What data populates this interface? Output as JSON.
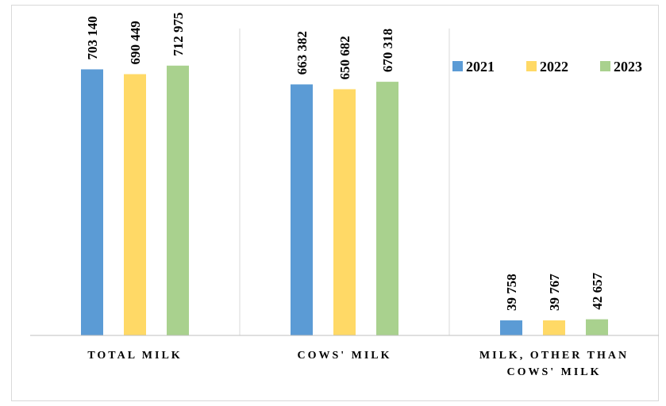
{
  "chart_data": {
    "type": "bar",
    "title": "",
    "xlabel": "",
    "ylabel": "",
    "categories": [
      "TOTAL MILK",
      "COWS' MILK",
      "MILK, OTHER THAN COWS' MILK"
    ],
    "category_lines": [
      [
        "TOTAL MILK"
      ],
      [
        "COWS' MILK"
      ],
      [
        "MILK, OTHER THAN",
        "COWS' MILK"
      ]
    ],
    "series": [
      {
        "name": "2021",
        "color": "#5b9bd5",
        "values": [
          703140,
          663382,
          39758
        ],
        "labels": [
          "703 140",
          "663 382",
          "39 758"
        ]
      },
      {
        "name": "2022",
        "color": "#ffd966",
        "values": [
          690449,
          650682,
          39767
        ],
        "labels": [
          "690 449",
          "650 682",
          "39 767"
        ]
      },
      {
        "name": "2023",
        "color": "#a9d18e",
        "values": [
          712975,
          670318,
          42657
        ],
        "labels": [
          "712 975",
          "670 318",
          "42 657"
        ]
      }
    ],
    "ylim": [
      0,
      790000
    ],
    "grid": false,
    "legend": "top-right",
    "colors": {
      "axis": "#bfbfbf",
      "separator": "#d9d9d9",
      "frame": "#d9d9d9"
    }
  }
}
